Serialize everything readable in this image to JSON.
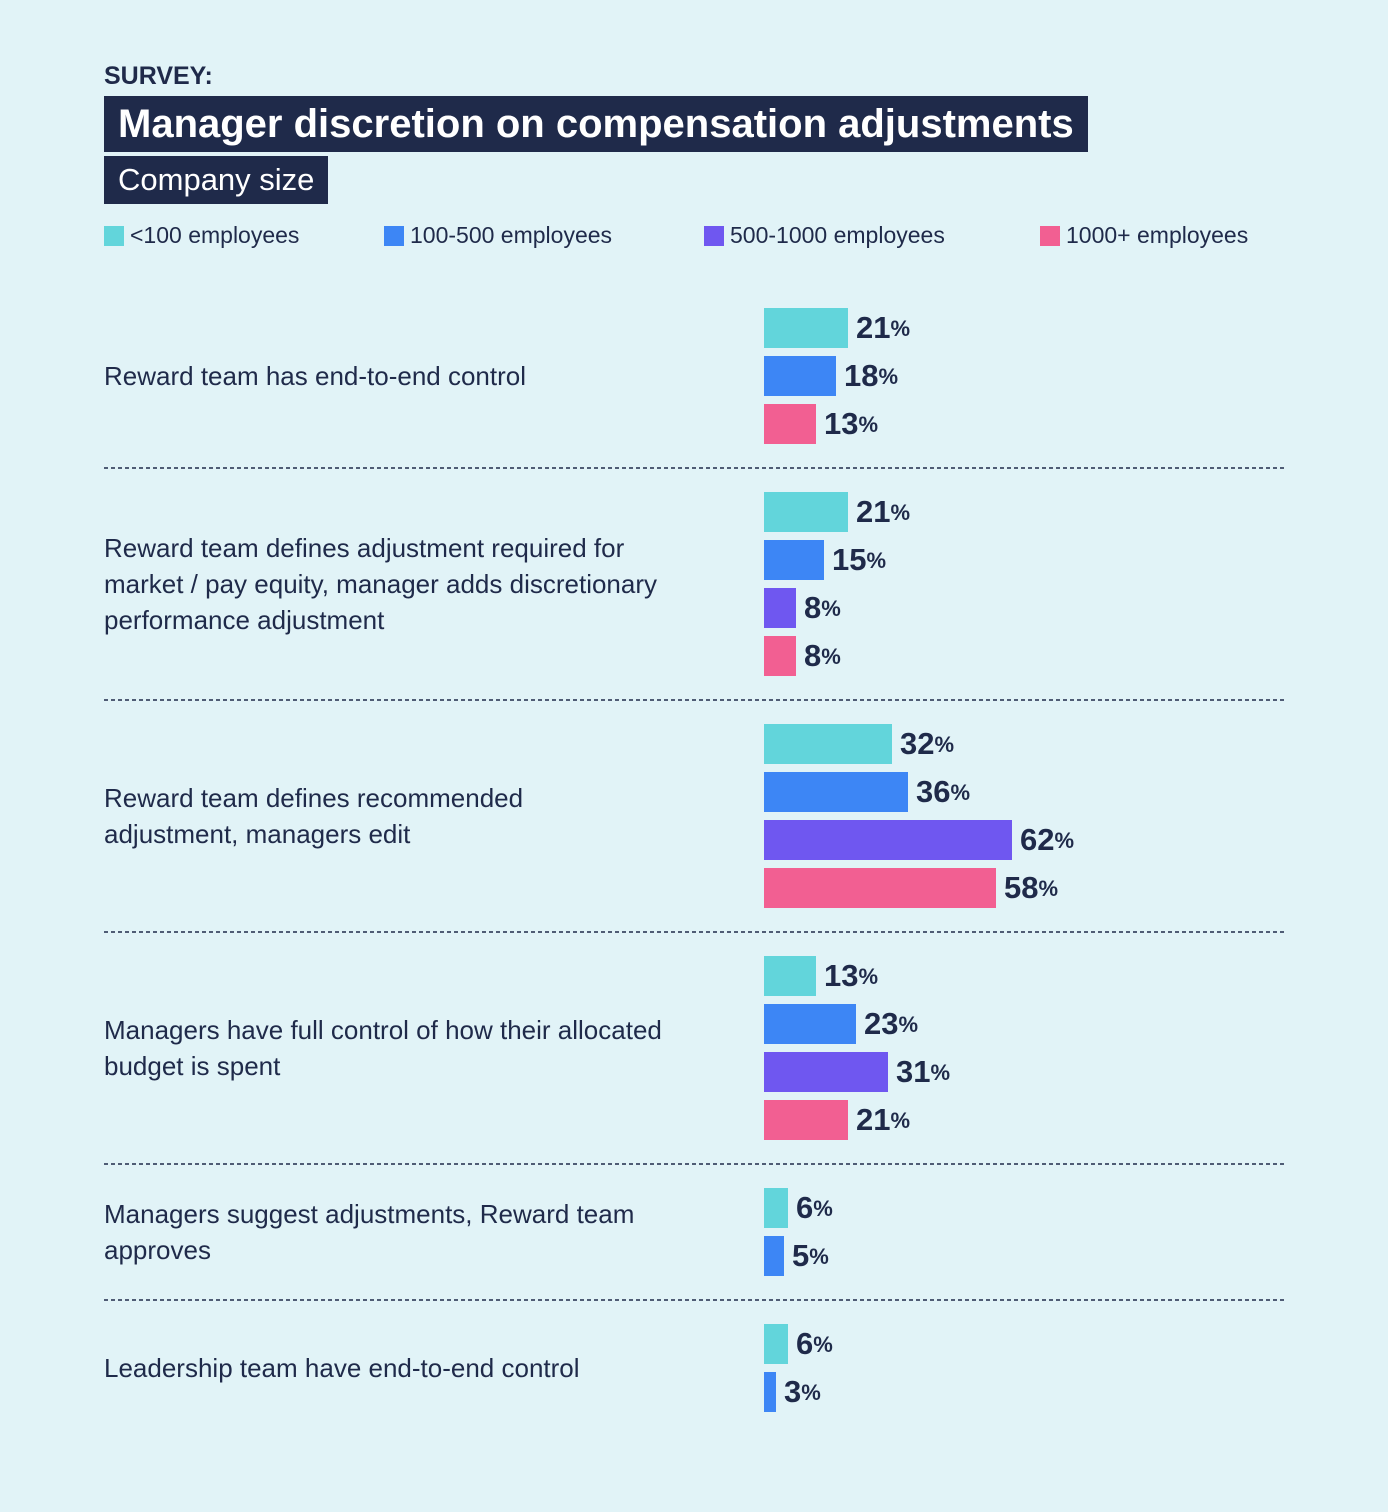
{
  "chart_data": {
    "type": "bar",
    "orientation": "horizontal",
    "kicker": "SURVEY:",
    "title": "Manager discretion on compensation adjustments",
    "subtitle": "Company size",
    "categories": [
      "Reward team has end-to-end control",
      "Reward team defines adjustment required for market / pay equity, manager adds discretionary performance adjustment",
      "Reward team defines recommended adjustment, managers edit",
      "Managers have full control of how their allocated budget is spent",
      "Managers suggest adjustments, Reward team approves",
      "Leadership team have end-to-end control"
    ],
    "series": [
      {
        "name": "<100 employees",
        "color": "#62d5db",
        "values": [
          21,
          21,
          32,
          13,
          6,
          6
        ],
        "value_labels": [
          "21%",
          "21%",
          "32%",
          "13%",
          "6%",
          "6%"
        ]
      },
      {
        "name": "100-500 employees",
        "color": "#3d86f5",
        "values": [
          18,
          15,
          36,
          23,
          5,
          3
        ],
        "value_labels": [
          "18%",
          "15%",
          "36%",
          "23%",
          "5%",
          "3%"
        ]
      },
      {
        "name": "500-1000 employees",
        "color": "#6f57f0",
        "values": [
          null,
          8,
          62,
          31,
          null,
          null
        ],
        "value_labels": [
          null,
          "8%",
          "62%",
          "31%",
          null,
          null
        ]
      },
      {
        "name": "1000+ employees",
        "color": "#f25f92",
        "values": [
          13,
          8,
          58,
          21,
          null,
          null
        ],
        "value_labels": [
          "13%",
          "8%",
          "58%",
          "21%",
          null,
          null
        ]
      }
    ]
  }
}
